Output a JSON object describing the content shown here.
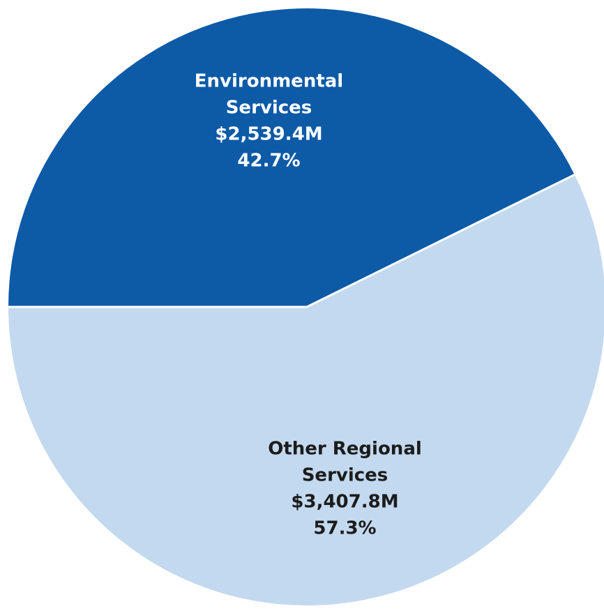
{
  "chart_data": {
    "type": "pie",
    "slices": [
      {
        "id": "environmental",
        "name_lines": [
          "Environmental",
          "Services"
        ],
        "amount": "$2,539.4M",
        "percent_label": "42.7%",
        "value": 2539.4,
        "percent": 42.7,
        "color": "#0d5aa7",
        "label_color": "#ffffff"
      },
      {
        "id": "other",
        "name_lines": [
          "Other Regional",
          "Services"
        ],
        "amount": "$3,407.8M",
        "percent_label": "57.3%",
        "value": 3407.8,
        "percent": 57.3,
        "color": "#c3d9ef",
        "label_color": "#1c1c1c"
      }
    ],
    "title": "",
    "legend": "none"
  }
}
